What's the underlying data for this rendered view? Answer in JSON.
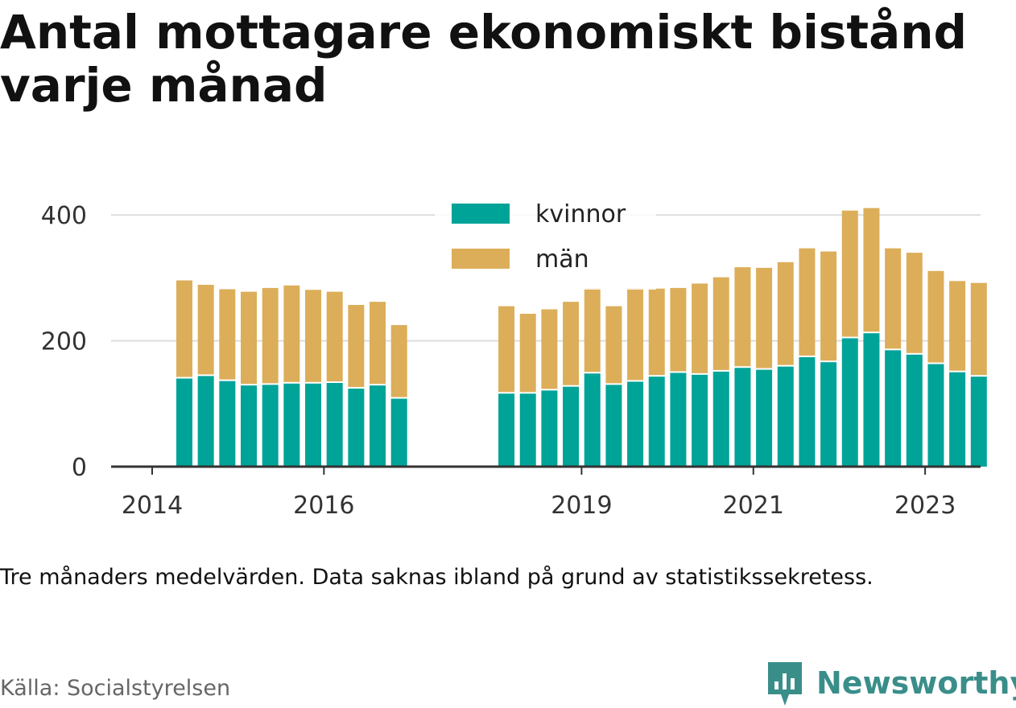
{
  "title": "Antal mottagare ekonomiskt bistånd varje månad",
  "note": "Tre månaders medelvärden. Data saknas ibland på grund av statistikssekretess.",
  "source": "Källa: Socialstyrelsen",
  "brand": "Newsworthy",
  "colors": {
    "kvinnor": "#00a397",
    "man": "#dcae5a",
    "grid": "#dddddd",
    "axis": "#333333",
    "brand": "#3a8e8a"
  },
  "chart_data": {
    "type": "bar",
    "stacked": true,
    "categories": [
      "2014-04",
      "2014-07",
      "2014-10",
      "2015-01",
      "2015-04",
      "2015-07",
      "2015-10",
      "2016-01",
      "2016-04",
      "2016-07",
      "2016-10",
      "2018-01",
      "2018-04",
      "2018-07",
      "2018-10",
      "2019-01",
      "2019-04",
      "2019-07",
      "2019-10",
      "2020-01",
      "2020-04",
      "2020-07",
      "2020-10",
      "2021-01",
      "2021-04",
      "2021-07",
      "2021-10",
      "2022-01",
      "2022-04",
      "2022-07",
      "2022-10",
      "2023-01",
      "2023-04",
      "2023-07"
    ],
    "series": [
      {
        "name": "kvinnor",
        "values": [
          140,
          144,
          136,
          129,
          130,
          132,
          132,
          133,
          124,
          129,
          108,
          116,
          116,
          121,
          127,
          148,
          130,
          135,
          143,
          149,
          146,
          151,
          157,
          154,
          159,
          174,
          166,
          204,
          212,
          185,
          178,
          163,
          150,
          143
        ]
      },
      {
        "name": "män",
        "values": [
          156,
          145,
          146,
          149,
          154,
          156,
          149,
          145,
          133,
          133,
          117,
          139,
          127,
          129,
          135,
          136,
          125,
          149,
          140,
          135,
          145,
          150,
          160,
          162,
          166,
          173,
          176,
          203,
          199,
          162,
          162,
          148,
          145,
          149
        ]
      }
    ],
    "x_ticks": [
      "2014",
      "2016",
      "2019",
      "2021",
      "2023"
    ],
    "y_ticks": [
      0,
      200,
      400
    ],
    "ylim": [
      0,
      440
    ],
    "grid": true,
    "legend_position": "top-center"
  }
}
